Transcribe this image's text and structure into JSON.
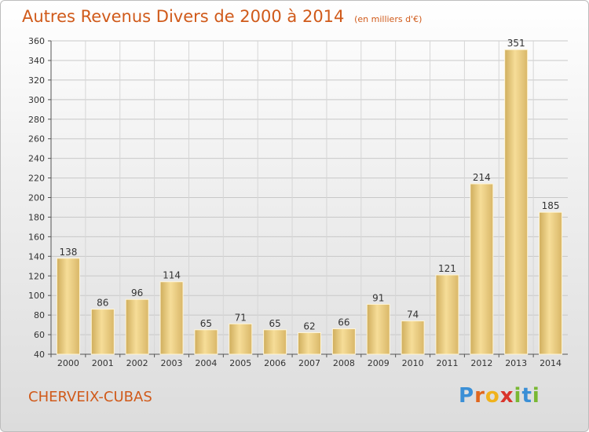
{
  "header": {
    "title": "Autres Revenus Divers de 2000 à 2014",
    "subtitle": "(en milliers d'€)"
  },
  "footer": {
    "place": "CHERVEIX-CUBAS",
    "logo_letters": [
      "P",
      "r",
      "o",
      "x",
      "i",
      "t",
      "i"
    ],
    "logo_colors": [
      "#3a8fd6",
      "#e0661d",
      "#f0b21c",
      "#d9342b",
      "#79b833",
      "#3a8fd6",
      "#79b833"
    ]
  },
  "chart_data": {
    "type": "bar",
    "categories": [
      "2000",
      "2001",
      "2002",
      "2003",
      "2004",
      "2005",
      "2006",
      "2007",
      "2008",
      "2009",
      "2010",
      "2011",
      "2012",
      "2013",
      "2014"
    ],
    "values": [
      138,
      86,
      96,
      114,
      65,
      71,
      65,
      62,
      66,
      91,
      74,
      121,
      214,
      351,
      185
    ],
    "title": "Autres Revenus Divers de 2000 à 2014",
    "subtitle": "(en milliers d'€)",
    "xlabel": "",
    "ylabel": "",
    "ylim": [
      40,
      360
    ],
    "ytick_step": 20,
    "grid": true,
    "bar_color": "#e8c87a"
  }
}
